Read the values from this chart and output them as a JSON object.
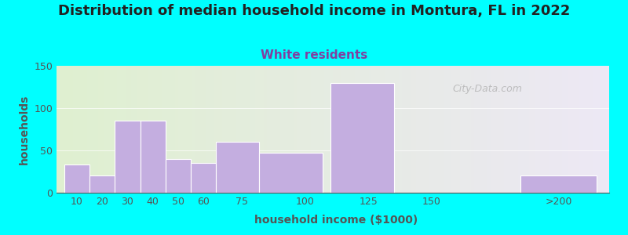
{
  "title": "Distribution of median household income in Montura, FL in 2022",
  "subtitle": "White residents",
  "xlabel": "household income ($1000)",
  "ylabel": "households",
  "background_outer": "#00FFFF",
  "background_inner_left": "#dff0d0",
  "background_inner_right": "#ede8f5",
  "bar_color": "#c4aee0",
  "bar_edge_color": "#ffffff",
  "categories": [
    "10",
    "20",
    "30",
    "40",
    "50",
    "60",
    "75",
    "100",
    "125",
    "150",
    ">200"
  ],
  "values": [
    33,
    20,
    85,
    85,
    40,
    35,
    60,
    47,
    130,
    0,
    20
  ],
  "bar_lefts": [
    5,
    15,
    25,
    35,
    45,
    55,
    65,
    82,
    110,
    137,
    185
  ],
  "bar_widths": [
    10,
    10,
    10,
    10,
    10,
    10,
    17,
    25,
    25,
    13,
    30
  ],
  "xtick_pos": [
    10,
    20,
    30,
    40,
    50,
    60,
    75,
    100,
    125,
    150,
    200
  ],
  "xlim": [
    2,
    220
  ],
  "ylim": [
    0,
    150
  ],
  "yticks": [
    0,
    50,
    100,
    150
  ],
  "title_fontsize": 13,
  "subtitle_fontsize": 11,
  "subtitle_color": "#8040a0",
  "axis_label_fontsize": 10,
  "tick_fontsize": 9,
  "watermark_text": "City-Data.com",
  "watermark_color": "#aaaaaa",
  "title_color": "#222222",
  "axis_color": "#555555"
}
